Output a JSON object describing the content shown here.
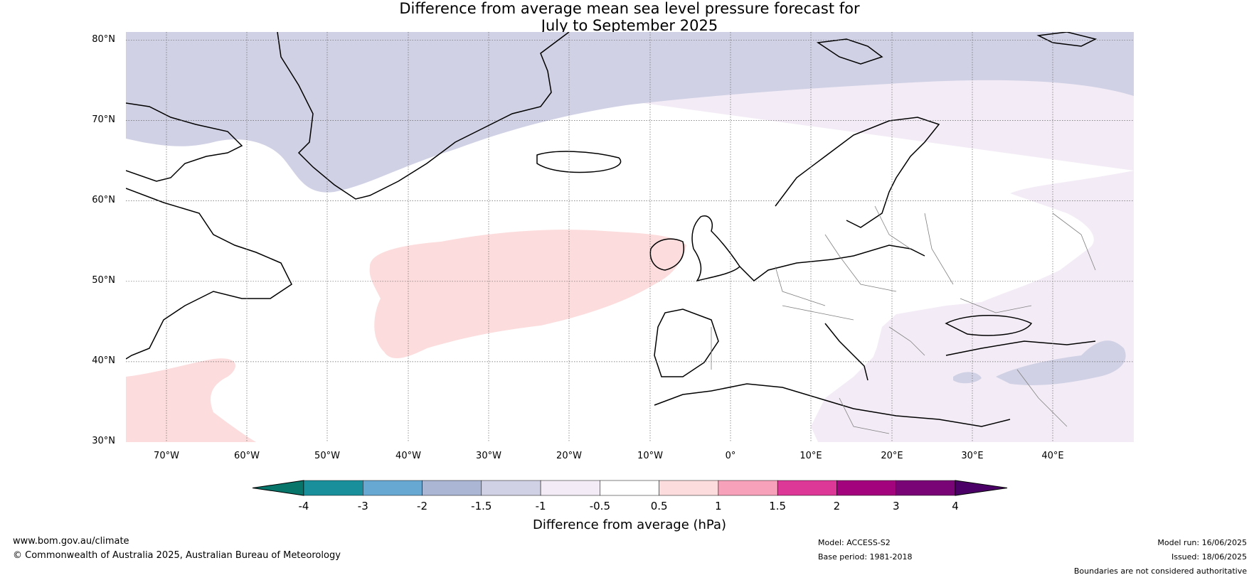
{
  "title": {
    "line1": "Difference from average mean sea level pressure forecast for",
    "line2": "July to September 2025"
  },
  "map": {
    "projection": "equirectangular",
    "extent": {
      "lon": [
        -75,
        50
      ],
      "lat": [
        30,
        81
      ]
    },
    "lat_labels": [
      {
        "lat": 80,
        "text": "80°N"
      },
      {
        "lat": 70,
        "text": "70°N"
      },
      {
        "lat": 60,
        "text": "60°N"
      },
      {
        "lat": 50,
        "text": "50°N"
      },
      {
        "lat": 40,
        "text": "40°N"
      },
      {
        "lat": 30,
        "text": "30°N"
      }
    ],
    "lon_labels": [
      {
        "lon": -70,
        "text": "70°W"
      },
      {
        "lon": -60,
        "text": "60°W"
      },
      {
        "lon": -50,
        "text": "50°W"
      },
      {
        "lon": -40,
        "text": "40°W"
      },
      {
        "lon": -30,
        "text": "30°W"
      },
      {
        "lon": -20,
        "text": "20°W"
      },
      {
        "lon": -10,
        "text": "10°W"
      },
      {
        "lon": 0,
        "text": "0°"
      },
      {
        "lon": 10,
        "text": "10°E"
      },
      {
        "lon": 20,
        "text": "20°E"
      },
      {
        "lon": 30,
        "text": "30°E"
      },
      {
        "lon": 40,
        "text": "40°E"
      }
    ],
    "regions": [
      {
        "name": "arctic-low-anomaly",
        "category": "-1.5 to -1"
      },
      {
        "name": "subarctic-low-anomaly",
        "category": "-1 to -0.5"
      },
      {
        "name": "north-atlantic-high-anomaly",
        "category": "0.5 to 1"
      },
      {
        "name": "subtropical-high-anomaly",
        "category": "0.5 to 1"
      },
      {
        "name": "eastern-mediterranean-low-anomaly",
        "category": "-1 to -0.5"
      },
      {
        "name": "black-sea-low-anomaly",
        "category": "-1.5 to -1"
      }
    ]
  },
  "colorbar": {
    "title": "Difference from average (hPa)",
    "ticks": [
      "-4",
      "-3",
      "-2",
      "-1.5",
      "-1",
      "-0.5",
      "0.5",
      "1",
      "1.5",
      "2",
      "3",
      "4"
    ],
    "colors": [
      "#1a8f9c",
      "#67a8d2",
      "#aab6d4",
      "#d1d1e5",
      "#f3ecf6",
      "#ffffff",
      "#fcdcdc",
      "#f8a1ba",
      "#dd3898",
      "#a3037c",
      "#780475"
    ],
    "under_color": "#08756b",
    "over_color": "#4a0066"
  },
  "footer": {
    "url": "www.bom.gov.au/climate",
    "copyright": "© Commonwealth of Australia 2025, Australian Bureau of Meteorology",
    "model": "Model: ACCESS-S2",
    "base_period": "Base period: 1981-2018",
    "model_run": "Model run: 16/06/2025",
    "issued": "Issued: 18/06/2025",
    "disclaimer": "Boundaries are not considered authoritative"
  }
}
